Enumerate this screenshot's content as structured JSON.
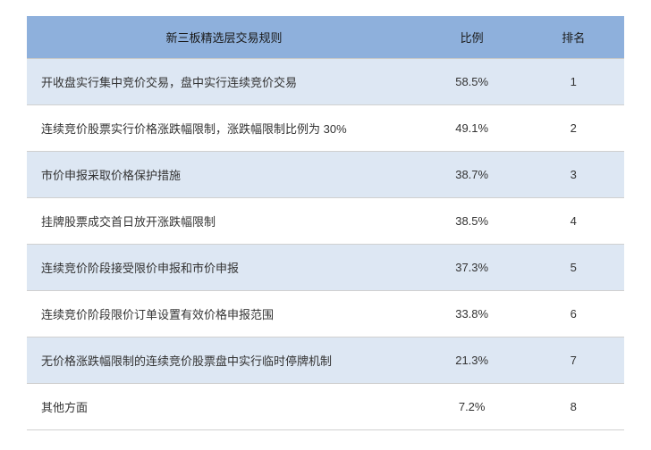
{
  "table": {
    "columns": [
      "新三板精选层交易规则",
      "比例",
      "排名"
    ],
    "header_bg": "#8eb0dc",
    "row_alt_bg": "#dde7f3",
    "row_bg": "#ffffff",
    "border_color": "#d0d0d0",
    "font_size": 13,
    "rows": [
      {
        "rule": "开收盘实行集中竞价交易，盘中实行连续竞价交易",
        "pct": "58.5%",
        "rank": "1"
      },
      {
        "rule": "连续竞价股票实行价格涨跌幅限制，涨跌幅限制比例为 30%",
        "pct": "49.1%",
        "rank": "2"
      },
      {
        "rule": "市价申报采取价格保护措施",
        "pct": "38.7%",
        "rank": "3"
      },
      {
        "rule": "挂牌股票成交首日放开涨跌幅限制",
        "pct": "38.5%",
        "rank": "4"
      },
      {
        "rule": "连续竞价阶段接受限价申报和市价申报",
        "pct": "37.3%",
        "rank": "5"
      },
      {
        "rule": "连续竞价阶段限价订单设置有效价格申报范围",
        "pct": "33.8%",
        "rank": "6"
      },
      {
        "rule": "无价格涨跌幅限制的连续竞价股票盘中实行临时停牌机制",
        "pct": "21.3%",
        "rank": "7"
      },
      {
        "rule": "其他方面",
        "pct": "7.2%",
        "rank": "8"
      }
    ]
  }
}
